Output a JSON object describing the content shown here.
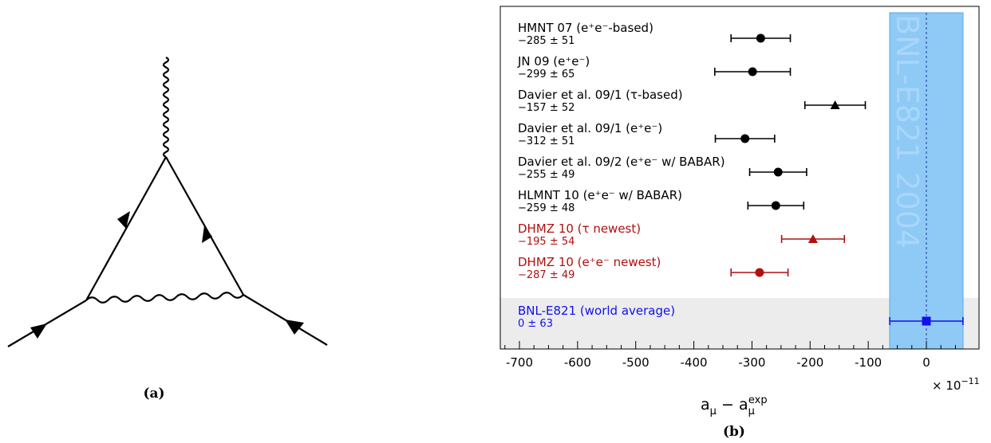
{
  "panel_a": {
    "caption": "(a)"
  },
  "panel_b": {
    "caption": "(b)",
    "multiplier": "× 10",
    "multiplier_exp": "−11"
  },
  "chart_data": {
    "type": "scatter",
    "xlabel_base": "a",
    "xlabel_sub": "μ",
    "xlabel_op": "−",
    "xlabel_base2": "a",
    "xlabel_sub2": "μ",
    "xlabel_sup2": "exp",
    "xlim": [
      -740,
      65
    ],
    "xticks": [
      -700,
      -600,
      -500,
      -400,
      -300,
      -200,
      -100,
      0
    ],
    "xtick_labels": [
      "-700",
      "-600",
      "-500",
      "-400",
      "-300",
      "-200",
      "-100",
      "0"
    ],
    "band": {
      "label": "BNL-E821 2004",
      "from": -63,
      "to": 63,
      "color": "#8ecaf5"
    },
    "entries": [
      {
        "label": "HMNT 07 (e⁺e⁻-based)",
        "value_text": "−285 ± 51",
        "value": -285,
        "error": 51,
        "marker": "circle",
        "color": "#000000"
      },
      {
        "label": "JN 09 (e⁺e⁻)",
        "value_text": "−299 ± 65",
        "value": -299,
        "error": 65,
        "marker": "circle",
        "color": "#000000"
      },
      {
        "label": "Davier et al. 09/1 (τ-based)",
        "value_text": "−157 ± 52",
        "value": -157,
        "error": 52,
        "marker": "triangle",
        "color": "#000000"
      },
      {
        "label": "Davier et al. 09/1 (e⁺e⁻)",
        "value_text": "−312 ± 51",
        "value": -312,
        "error": 51,
        "marker": "circle",
        "color": "#000000"
      },
      {
        "label": "Davier et al. 09/2 (e⁺e⁻ w/ BABAR)",
        "value_text": "−255 ± 49",
        "value": -255,
        "error": 49,
        "marker": "circle",
        "color": "#000000"
      },
      {
        "label": "HLMNT 10 (e⁺e⁻ w/ BABAR)",
        "value_text": "−259 ± 48",
        "value": -259,
        "error": 48,
        "marker": "circle",
        "color": "#000000"
      },
      {
        "label": "DHMZ 10 (τ newest)",
        "value_text": "−195 ± 54",
        "value": -195,
        "error": 54,
        "marker": "triangle",
        "color": "#b01010"
      },
      {
        "label": "DHMZ 10 (e⁺e⁻ newest)",
        "value_text": "−287 ± 49",
        "value": -287,
        "error": 49,
        "marker": "circle",
        "color": "#b01010"
      },
      {
        "label": "BNL-E821 (world average)",
        "value_text": "0 ± 63",
        "value": 0,
        "error": 63,
        "marker": "square",
        "color": "#1010ee"
      }
    ]
  }
}
